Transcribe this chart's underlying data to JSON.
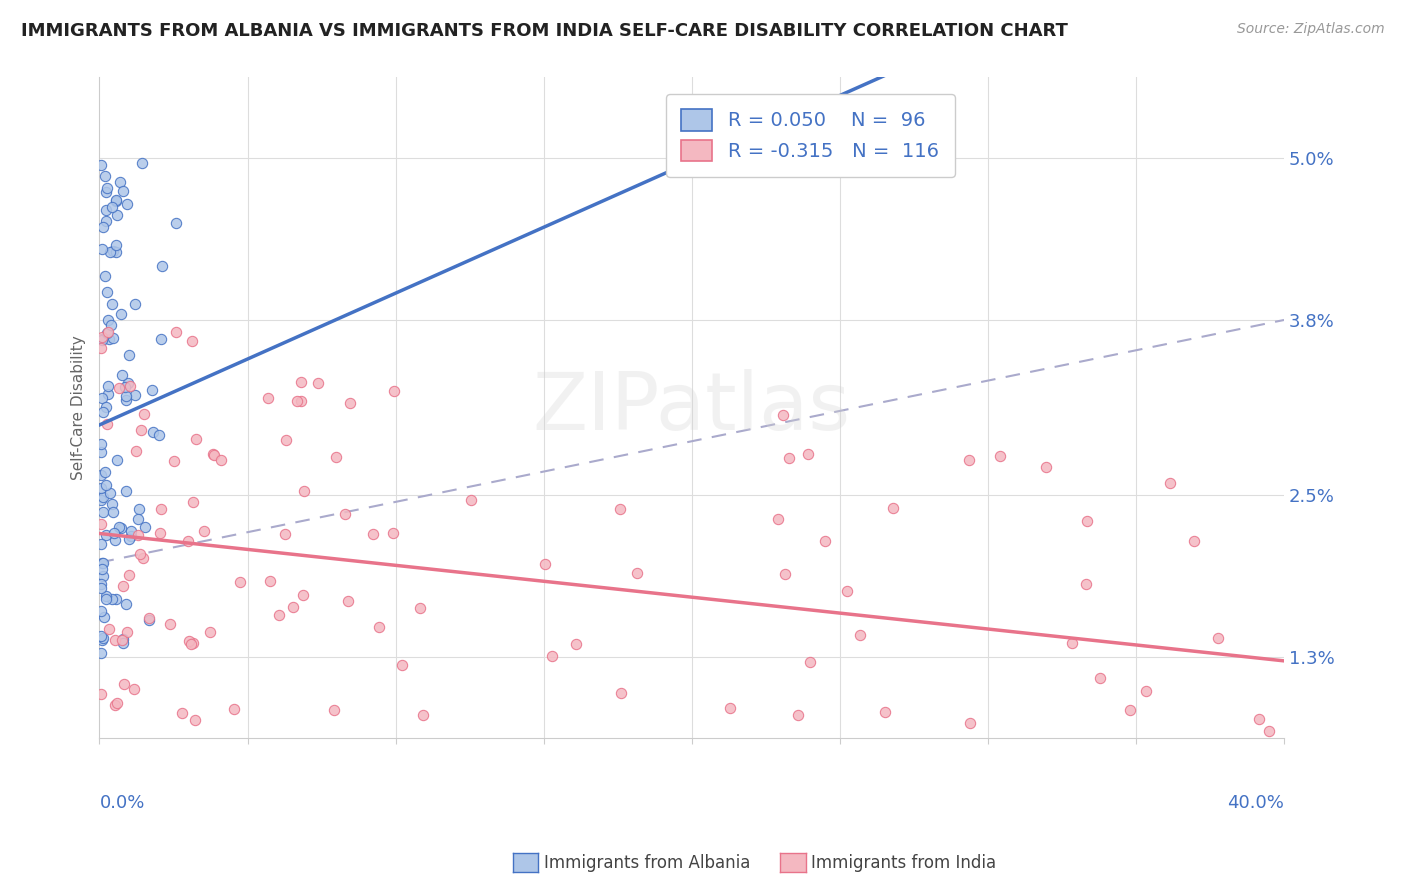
{
  "title": "IMMIGRANTS FROM ALBANIA VS IMMIGRANTS FROM INDIA SELF-CARE DISABILITY CORRELATION CHART",
  "source": "Source: ZipAtlas.com",
  "legend_albania": "Immigrants from Albania",
  "legend_india": "Immigrants from India",
  "xlim": [
    0.0,
    40.0
  ],
  "ylim": [
    0.7,
    5.6
  ],
  "ylabel_ticks": [
    1.3,
    2.5,
    3.8,
    5.0
  ],
  "R_albania": 0.05,
  "N_albania": 96,
  "R_india": -0.315,
  "N_india": 116,
  "color_albania_fill": "#aec6e8",
  "color_albania_edge": "#4472c4",
  "color_india_fill": "#f4b8c1",
  "color_india_edge": "#e8738a",
  "color_albania_line": "#4472c4",
  "color_india_line": "#e8738a",
  "color_dash": "#aaaacc",
  "dash_x0": 0.0,
  "dash_x1": 40.0,
  "dash_y0": 2.0,
  "dash_y1": 3.8,
  "watermark": "ZIPatlas"
}
